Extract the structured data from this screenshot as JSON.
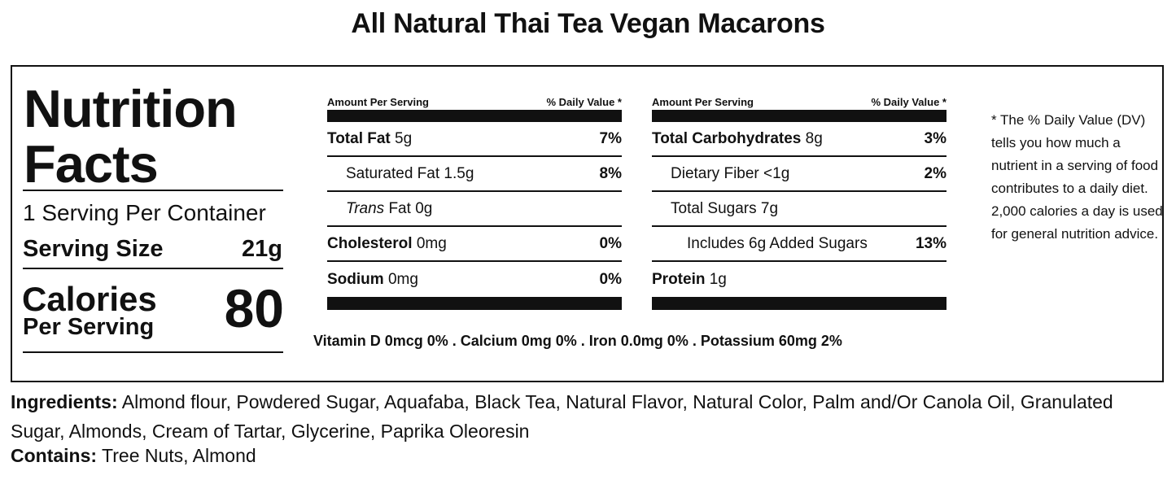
{
  "title": "All Natural Thai Tea Vegan Macarons",
  "label": {
    "heading_line1": "Nutrition",
    "heading_line2": "Facts",
    "servings_per_container": "1 Serving Per Container",
    "serving_size_label": "Serving Size",
    "serving_size_value": "21g",
    "calories_label": "Calories",
    "per_serving": "Per Serving",
    "calories_value": "80"
  },
  "table_left": {
    "amount_header": "Amount Per Serving",
    "dv_header": "% Daily Value *",
    "rows": [
      {
        "name": "Total Fat",
        "amount": "5g",
        "dv": "7%"
      },
      {
        "name": "Saturated Fat",
        "amount": "1.5g",
        "dv": "8%"
      },
      {
        "name_italic": "Trans",
        "name": "Fat",
        "amount": "0g",
        "dv": ""
      },
      {
        "name": "Cholesterol",
        "amount": "0mg",
        "dv": "0%"
      },
      {
        "name": "Sodium",
        "amount": "0mg",
        "dv": "0%"
      }
    ]
  },
  "table_right": {
    "amount_header": "Amount Per Serving",
    "dv_header": "% Daily Value *",
    "rows": [
      {
        "name": "Total Carbohydrates",
        "amount": "8g",
        "dv": "3%"
      },
      {
        "name": "Dietary Fiber",
        "amount": "<1g",
        "dv": "2%"
      },
      {
        "name": "Total Sugars",
        "amount": "7g",
        "dv": ""
      },
      {
        "name": "Includes 6g Added Sugars",
        "amount": "",
        "dv": "13%"
      },
      {
        "name": "Protein",
        "amount": "1g",
        "dv": ""
      }
    ]
  },
  "vitamins": "Vitamin D 0mcg 0% . Calcium 0mg 0% . Iron 0.0mg 0% . Potassium 60mg 2%",
  "footnote": "* The % Daily Value (DV) tells you how much a nutrient in a serving of food contributes to a daily diet. 2,000 calories a day is used for general nutrition advice.",
  "ingredients": {
    "label": "Ingredients:",
    "text": "Almond flour, Powdered Sugar, Aquafaba, Black Tea, Natural Flavor, Natural Color, Palm and/Or Canola Oil, Granulated Sugar, Almonds, Cream of Tartar, Glycerine, Paprika Oleoresin"
  },
  "contains": {
    "label": "Contains:",
    "text": "Tree Nuts, Almond"
  }
}
